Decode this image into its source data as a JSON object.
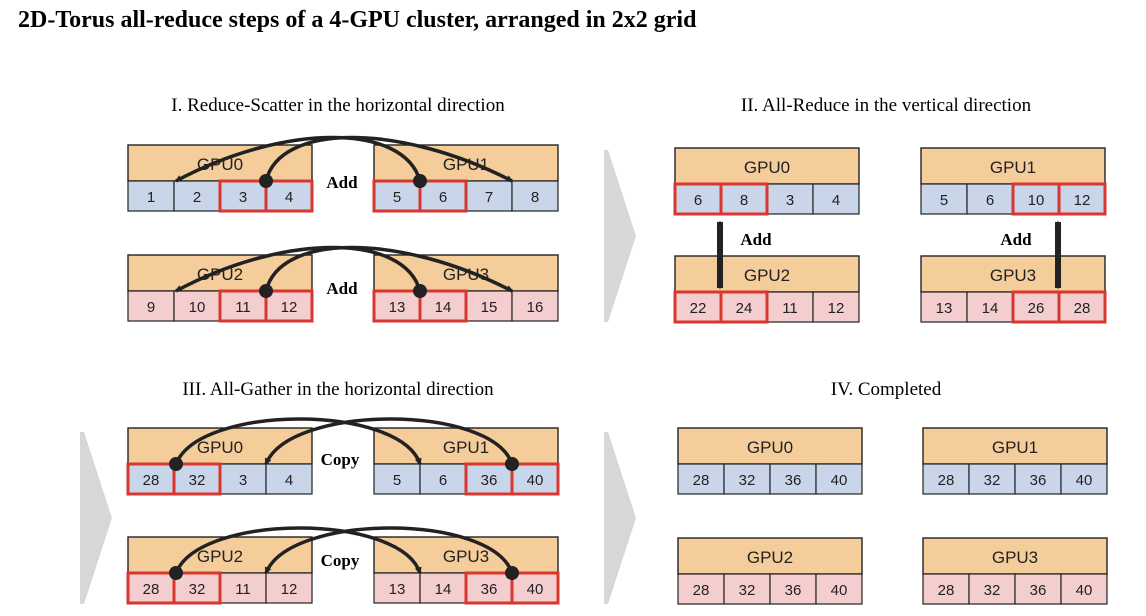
{
  "title": "2D-Torus all-reduce steps of a 4-GPU cluster, arranged in 2x2 grid",
  "colors": {
    "gpu_header": "#f4cd9b",
    "blue_cell": "#c9d6ea",
    "pink_cell": "#f4cdcf",
    "highlight": "#d9362f",
    "chevron": "#d7d7d7",
    "line": "#222222"
  },
  "panels": [
    {
      "id": "reduce-scatter",
      "title": "I. Reduce-Scatter in the horizontal direction",
      "labels": [
        "Add",
        "Add"
      ],
      "gpus": [
        {
          "name": "GPU0",
          "values": [
            "1",
            "2",
            "3",
            "4"
          ],
          "highlight": [
            2,
            3
          ],
          "color": "blue"
        },
        {
          "name": "GPU1",
          "values": [
            "5",
            "6",
            "7",
            "8"
          ],
          "highlight": [
            0,
            1
          ],
          "color": "blue"
        },
        {
          "name": "GPU2",
          "values": [
            "9",
            "10",
            "11",
            "12"
          ],
          "highlight": [
            2,
            3
          ],
          "color": "pink"
        },
        {
          "name": "GPU3",
          "values": [
            "13",
            "14",
            "15",
            "16"
          ],
          "highlight": [
            0,
            1
          ],
          "color": "pink"
        }
      ]
    },
    {
      "id": "all-reduce",
      "title": "II. All-Reduce in the vertical direction",
      "labels": [
        "Add",
        "Add"
      ],
      "gpus": [
        {
          "name": "GPU0",
          "values": [
            "6",
            "8",
            "3",
            "4"
          ],
          "highlight": [
            0,
            1
          ],
          "color": "blue"
        },
        {
          "name": "GPU1",
          "values": [
            "5",
            "6",
            "10",
            "12"
          ],
          "highlight": [
            2,
            3
          ],
          "color": "blue"
        },
        {
          "name": "GPU2",
          "values": [
            "22",
            "24",
            "11",
            "12"
          ],
          "highlight": [
            0,
            1
          ],
          "color": "pink"
        },
        {
          "name": "GPU3",
          "values": [
            "13",
            "14",
            "26",
            "28"
          ],
          "highlight": [
            2,
            3
          ],
          "color": "pink"
        }
      ]
    },
    {
      "id": "all-gather",
      "title": "III. All-Gather in the horizontal direction",
      "labels": [
        "Copy",
        "Copy"
      ],
      "gpus": [
        {
          "name": "GPU0",
          "values": [
            "28",
            "32",
            "3",
            "4"
          ],
          "highlight": [
            0,
            1
          ],
          "color": "blue"
        },
        {
          "name": "GPU1",
          "values": [
            "5",
            "6",
            "36",
            "40"
          ],
          "highlight": [
            2,
            3
          ],
          "color": "blue"
        },
        {
          "name": "GPU2",
          "values": [
            "28",
            "32",
            "11",
            "12"
          ],
          "highlight": [
            0,
            1
          ],
          "color": "pink"
        },
        {
          "name": "GPU3",
          "values": [
            "13",
            "14",
            "36",
            "40"
          ],
          "highlight": [
            2,
            3
          ],
          "color": "pink"
        }
      ]
    },
    {
      "id": "completed",
      "title": "IV. Completed",
      "labels": [],
      "gpus": [
        {
          "name": "GPU0",
          "values": [
            "28",
            "32",
            "36",
            "40"
          ],
          "highlight": [],
          "color": "blue"
        },
        {
          "name": "GPU1",
          "values": [
            "28",
            "32",
            "36",
            "40"
          ],
          "highlight": [],
          "color": "blue"
        },
        {
          "name": "GPU2",
          "values": [
            "28",
            "32",
            "36",
            "40"
          ],
          "highlight": [],
          "color": "pink"
        },
        {
          "name": "GPU3",
          "values": [
            "28",
            "32",
            "36",
            "40"
          ],
          "highlight": [],
          "color": "pink"
        }
      ]
    }
  ]
}
